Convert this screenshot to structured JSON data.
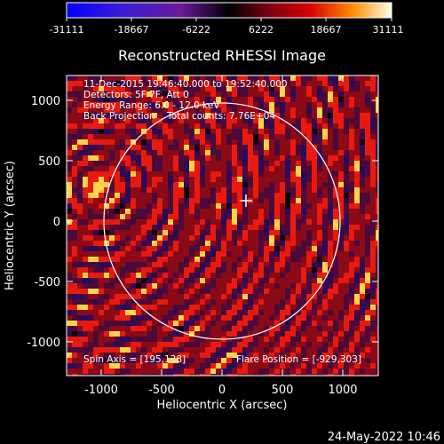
{
  "colorbar": {
    "ticks": [
      "-31111",
      "-18667",
      "-6222",
      "6222",
      "18667",
      "31111"
    ]
  },
  "plot": {
    "title": "Reconstructed RHESSI Image",
    "xlabel": "Heliocentric X (arcsec)",
    "ylabel": "Heliocentric Y (arcsec)",
    "xticks": [
      "-1000",
      "-500",
      "0",
      "500",
      "1000"
    ],
    "yticks": [
      "1000",
      "500",
      "0",
      "-500",
      "-1000"
    ],
    "info_lines": [
      "11-Dec-2015 19:46:40.000 to 19:52:40.000",
      "Detectors: 5F 7F, Att 0",
      "Energy Range: 6.0 - 12.0 keV",
      "Back Projection    Total counts: 7.76E+04"
    ],
    "spin_axis": "Spin Axis = [195,138]",
    "flare_position": "Flare Position = [-929,303]"
  },
  "footer": {
    "datetime": "24-May-2022 10:46"
  },
  "colors": {
    "circle": "#ffffff",
    "marker": "#ffffff"
  }
}
